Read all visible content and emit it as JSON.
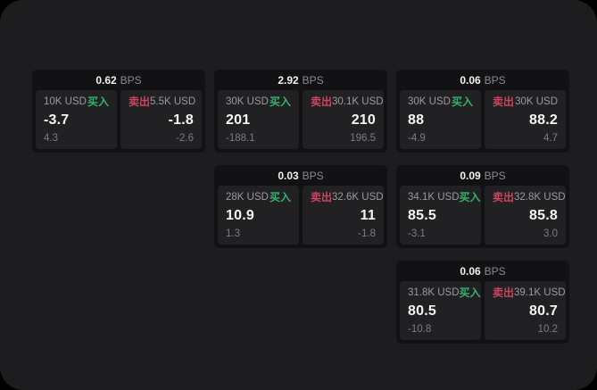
{
  "labels": {
    "buy": "买入",
    "sell": "卖出",
    "bps_unit": "BPS"
  },
  "colors": {
    "buy_green": "#34b36a",
    "sell_red": "#cc4460",
    "app_background": "#1d1d1f",
    "card_background": "#121214",
    "panel_background": "#212124"
  },
  "cards": [
    {
      "row": 1,
      "col": 1,
      "bps": "0.62",
      "buy": {
        "size": "10K USD",
        "value": "-3.7",
        "sub": "4.3"
      },
      "sell": {
        "size": "5.5K USD",
        "value": "-1.8",
        "sub": "-2.6"
      }
    },
    {
      "row": 1,
      "col": 2,
      "bps": "2.92",
      "buy": {
        "size": "30K USD",
        "value": "201",
        "sub": "-188.1"
      },
      "sell": {
        "size": "30.1K USD",
        "value": "210",
        "sub": "196.5"
      }
    },
    {
      "row": 1,
      "col": 3,
      "bps": "0.06",
      "buy": {
        "size": "30K USD",
        "value": "88",
        "sub": "-4.9"
      },
      "sell": {
        "size": "30K USD",
        "value": "88.2",
        "sub": "4.7"
      }
    },
    {
      "row": 2,
      "col": 2,
      "bps": "0.03",
      "buy": {
        "size": "28K USD",
        "value": "10.9",
        "sub": "1.3"
      },
      "sell": {
        "size": "32.6K USD",
        "value": "11",
        "sub": "-1.8"
      }
    },
    {
      "row": 2,
      "col": 3,
      "bps": "0.09",
      "buy": {
        "size": "34.1K USD",
        "value": "85.5",
        "sub": "-3.1"
      },
      "sell": {
        "size": "32.8K USD",
        "value": "85.8",
        "sub": "3.0"
      }
    },
    {
      "row": 3,
      "col": 3,
      "bps": "0.06",
      "buy": {
        "size": "31.8K USD",
        "value": "80.5",
        "sub": "-10.8"
      },
      "sell": {
        "size": "39.1K USD",
        "value": "80.7",
        "sub": "10.2"
      }
    }
  ]
}
